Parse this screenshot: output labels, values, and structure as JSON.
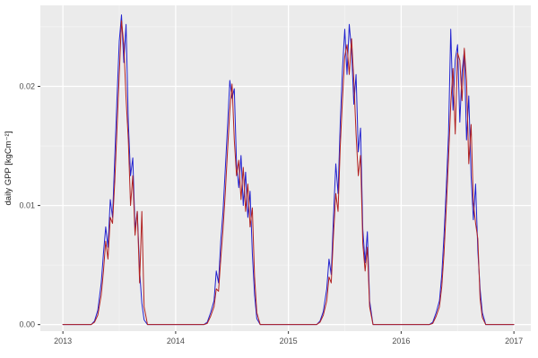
{
  "chart_data": {
    "type": "line",
    "title": "",
    "xlabel": "",
    "ylabel": "daily GPP [kgCm⁻²]",
    "xlim": [
      2012.8,
      2017.15
    ],
    "ylim": [
      -0.00055,
      0.0268
    ],
    "x_major_ticks": [
      2013,
      2014,
      2015,
      2016,
      2017
    ],
    "x_tick_labels": [
      "2013",
      "2014",
      "2015",
      "2016",
      "2017"
    ],
    "x_minor_ticks": [
      2013.5,
      2014.5,
      2015.5,
      2016.5
    ],
    "y_major_ticks": [
      0,
      0.01,
      0.02
    ],
    "y_tick_labels": [
      "0.00",
      "0.01",
      "0.02"
    ],
    "y_minor_ticks": [
      0.005,
      0.015,
      0.025
    ],
    "grid": true,
    "legend": "none",
    "theme": {
      "figure_background": "#ffffff",
      "panel_background": "#ebebeb",
      "grid_major": "#ffffff",
      "grid_minor": "#f4f4f4",
      "tick_color": "#333333",
      "tick_label_color": "#4d4d4d"
    },
    "years": [
      2013,
      2014,
      2015,
      2016
    ],
    "x_end": 2017,
    "x_offsets": [
      0.0,
      0.1,
      0.2,
      0.25,
      0.28,
      0.31,
      0.34,
      0.36,
      0.38,
      0.4,
      0.42,
      0.44,
      0.46,
      0.48,
      0.5,
      0.52,
      0.54,
      0.56,
      0.58,
      0.6,
      0.62,
      0.64,
      0.66,
      0.68,
      0.7,
      0.72,
      0.75,
      0.85,
      0.95
    ],
    "series": [
      {
        "name": "blue-line",
        "color": "#2222d0",
        "end_value": 0,
        "values_by_year": [
          [
            0,
            0,
            0,
            0,
            0.0003,
            0.0012,
            0.0035,
            0.006,
            0.0082,
            0.0065,
            0.0105,
            0.009,
            0.014,
            0.019,
            0.0238,
            0.026,
            0.022,
            0.0252,
            0.017,
            0.0125,
            0.014,
            0.008,
            0.0095,
            0.0045,
            0.0018,
            0.0004,
            0,
            0,
            0
          ],
          [
            0,
            0,
            0,
            0,
            0.0002,
            0.001,
            0.002,
            0.0045,
            0.0035,
            0.007,
            0.0095,
            0.013,
            0.0165,
            0.0205,
            0.019,
            0.0198,
            0.0135,
            0.0115,
            0.0142,
            0.01,
            0.0128,
            0.009,
            0.0112,
            0.006,
            0.0025,
            0.0005,
            0,
            0,
            0
          ],
          [
            0,
            0,
            0,
            0,
            0.0003,
            0.0011,
            0.003,
            0.0055,
            0.0042,
            0.009,
            0.0135,
            0.011,
            0.017,
            0.0215,
            0.0248,
            0.021,
            0.0252,
            0.023,
            0.0185,
            0.021,
            0.0145,
            0.0165,
            0.008,
            0.0052,
            0.0078,
            0.002,
            0,
            0,
            0
          ],
          [
            0,
            0,
            0,
            0,
            0.0002,
            0.001,
            0.002,
            0.0042,
            0.0075,
            0.0115,
            0.016,
            0.0248,
            0.018,
            0.0222,
            0.0235,
            0.017,
            0.0212,
            0.023,
            0.0155,
            0.0192,
            0.0125,
            0.0088,
            0.0118,
            0.0062,
            0.003,
            0.001,
            0,
            0,
            0
          ]
        ]
      },
      {
        "name": "red-line",
        "color": "#b22222",
        "end_value": 0,
        "values_by_year": [
          [
            0,
            0,
            0,
            0,
            0.0002,
            0.0008,
            0.0025,
            0.0045,
            0.007,
            0.0055,
            0.009,
            0.0085,
            0.012,
            0.0165,
            0.021,
            0.0255,
            0.0235,
            0.019,
            0.0155,
            0.01,
            0.0125,
            0.0075,
            0.0095,
            0.0035,
            0.0095,
            0.0015,
            0,
            0,
            0
          ],
          [
            0,
            0,
            0,
            0,
            0.0001,
            0.0007,
            0.0015,
            0.003,
            0.0028,
            0.0055,
            0.008,
            0.011,
            0.0145,
            0.018,
            0.0202,
            0.0155,
            0.0125,
            0.0138,
            0.0105,
            0.0132,
            0.0095,
            0.0118,
            0.0082,
            0.0098,
            0.004,
            0.001,
            0,
            0,
            0
          ],
          [
            0,
            0,
            0,
            0,
            0.0002,
            0.0008,
            0.002,
            0.004,
            0.0035,
            0.0075,
            0.011,
            0.0095,
            0.015,
            0.019,
            0.0225,
            0.0235,
            0.021,
            0.024,
            0.0205,
            0.016,
            0.0125,
            0.0142,
            0.0068,
            0.0045,
            0.0065,
            0.0015,
            0,
            0,
            0
          ],
          [
            0,
            0,
            0,
            0,
            0.0001,
            0.0007,
            0.0015,
            0.0032,
            0.006,
            0.0098,
            0.014,
            0.0185,
            0.0215,
            0.016,
            0.0228,
            0.0222,
            0.0188,
            0.0232,
            0.0205,
            0.0135,
            0.0168,
            0.0102,
            0.0085,
            0.0072,
            0.0022,
            0.0006,
            0,
            0,
            0
          ]
        ]
      }
    ]
  }
}
